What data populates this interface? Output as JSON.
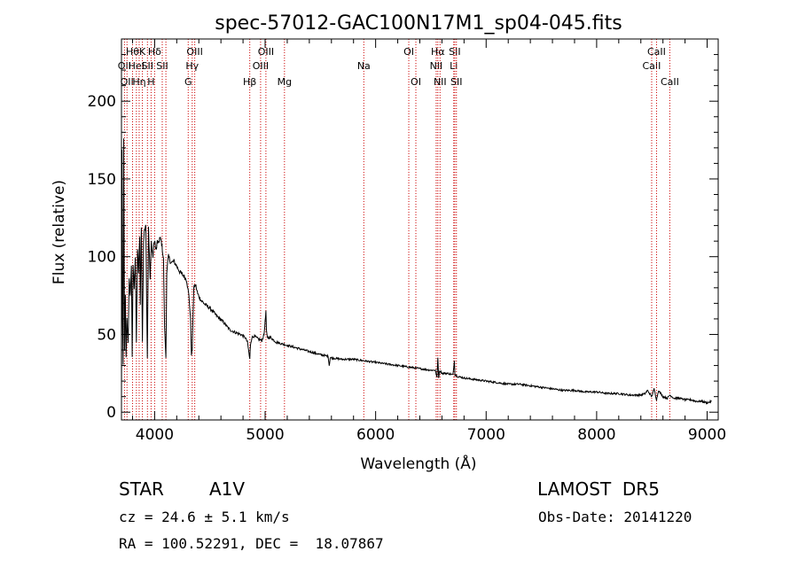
{
  "chart_data": {
    "type": "line",
    "title": "spec-57012-GAC100N17M1_sp04-045.fits",
    "xlabel": "Wavelength (Å)",
    "ylabel": "Flux (relative)",
    "xlim": [
      3700,
      9100
    ],
    "ylim": [
      -5,
      240
    ],
    "x_ticks": [
      4000,
      5000,
      6000,
      7000,
      8000,
      9000
    ],
    "y_ticks": [
      0,
      50,
      100,
      150,
      200
    ],
    "grid": false,
    "series": [
      {
        "x": [
          3700,
          3705,
          3710,
          3715,
          3720,
          3728,
          3735,
          3742,
          3750,
          3760,
          3770,
          3780,
          3790,
          3797,
          3805,
          3815,
          3825,
          3835,
          3845,
          3855,
          3865,
          3870,
          3880,
          3889,
          3900,
          3910,
          3920,
          3934,
          3945,
          3955,
          3960,
          3970,
          3975,
          3985,
          3995,
          4005,
          4015,
          4025,
          4035,
          4045,
          4060,
          4070,
          4080,
          4090,
          4102,
          4110,
          4125,
          4150,
          4175,
          4200,
          4230,
          4260,
          4290,
          4310,
          4325,
          4333,
          4340,
          4347,
          4355,
          4370,
          4390,
          4420,
          4460,
          4500,
          4560,
          4620,
          4680,
          4740,
          4780,
          4820,
          4840,
          4850,
          4861,
          4868,
          4880,
          4900,
          4940,
          4970,
          4990,
          5000,
          5007,
          5012,
          5020,
          5050,
          5100,
          5150,
          5200,
          5300,
          5400,
          5500,
          5570,
          5580,
          5590,
          5700,
          5800,
          5900,
          6000,
          6100,
          6200,
          6300,
          6400,
          6500,
          6540,
          6555,
          6563,
          6570,
          6580,
          6600,
          6650,
          6700,
          6712,
          6718,
          6725,
          6740,
          6800,
          6900,
          7000,
          7100,
          7200,
          7300,
          7400,
          7500,
          7600,
          7700,
          7800,
          7900,
          8000,
          8100,
          8200,
          8300,
          8400,
          8440,
          8460,
          8480,
          8498,
          8520,
          8542,
          8560,
          8600,
          8640,
          8662,
          8680,
          8700,
          8750,
          8800,
          8850,
          8900,
          8950,
          9000,
          9040
        ],
        "y": [
          5,
          170,
          60,
          30,
          175,
          40,
          75,
          35,
          60,
          45,
          85,
          75,
          95,
          35,
          95,
          80,
          100,
          45,
          105,
          90,
          112,
          70,
          118,
          45,
          110,
          118,
          122,
          35,
          118,
          95,
          85,
          110,
          105,
          100,
          110,
          108,
          104,
          110,
          108,
          112,
          110,
          105,
          98,
          55,
          35,
          90,
          100,
          96,
          97,
          94,
          90,
          88,
          85,
          75,
          60,
          37,
          40,
          60,
          80,
          82,
          76,
          72,
          69,
          67,
          62,
          58,
          53,
          51,
          50,
          48,
          45,
          40,
          34,
          44,
          48,
          49,
          47,
          46,
          50,
          58,
          65,
          52,
          48,
          48,
          45,
          44,
          43,
          41,
          39,
          37,
          36,
          30,
          35,
          34,
          34,
          33,
          32,
          31,
          30,
          29,
          28,
          27,
          27,
          22,
          35,
          22,
          27,
          25,
          25,
          24,
          33,
          24,
          24,
          23,
          22,
          21,
          20,
          19,
          18,
          18,
          17,
          16,
          15,
          14,
          14,
          13,
          13,
          12,
          12,
          11,
          11,
          12,
          14,
          12,
          10,
          15,
          8,
          14,
          10,
          9,
          11,
          10,
          9,
          9,
          8,
          8,
          7,
          7,
          6,
          7
        ]
      }
    ],
    "lines": [
      {
        "x": 3727,
        "label": "OII",
        "row": 2
      },
      {
        "x": 3750,
        "label": "OII",
        "row": 3
      },
      {
        "x": 3800,
        "label": "Hθ",
        "row": 1
      },
      {
        "x": 3835,
        "label": "HeI",
        "row": 2
      },
      {
        "x": 3860,
        "label": "Hη",
        "row": 3
      },
      {
        "x": 3889,
        "label": "K",
        "row": 1
      },
      {
        "x": 3935,
        "label": "SII",
        "row": 2
      },
      {
        "x": 3968,
        "label": "H",
        "row": 3
      },
      {
        "x": 4000,
        "label": "Hδ",
        "row": 1
      },
      {
        "x": 4069,
        "label": "SII",
        "row": 2
      },
      {
        "x": 4102,
        "label": "",
        "row": 0
      },
      {
        "x": 4304,
        "label": "G",
        "row": 3
      },
      {
        "x": 4340,
        "label": "Hγ",
        "row": 2
      },
      {
        "x": 4363,
        "label": "OIII",
        "row": 1
      },
      {
        "x": 4861,
        "label": "Hβ",
        "row": 3
      },
      {
        "x": 4959,
        "label": "OIII",
        "row": 2
      },
      {
        "x": 5007,
        "label": "OIII",
        "row": 1
      },
      {
        "x": 5175,
        "label": "Mg",
        "row": 3
      },
      {
        "x": 5893,
        "label": "Na",
        "row": 2
      },
      {
        "x": 6300,
        "label": "OI",
        "row": 1
      },
      {
        "x": 6364,
        "label": "OI",
        "row": 3
      },
      {
        "x": 6548,
        "label": "NII",
        "row": 2
      },
      {
        "x": 6563,
        "label": "Hα",
        "row": 1
      },
      {
        "x": 6583,
        "label": "NII",
        "row": 3
      },
      {
        "x": 6707,
        "label": "Li",
        "row": 2
      },
      {
        "x": 6716,
        "label": "SII",
        "row": 1
      },
      {
        "x": 6731,
        "label": "SII",
        "row": 3
      },
      {
        "x": 8498,
        "label": "CaII",
        "row": 2
      },
      {
        "x": 8542,
        "label": "CaII",
        "row": 1
      },
      {
        "x": 8662,
        "label": "CaII",
        "row": 3
      }
    ],
    "line_color": "#cc0000"
  },
  "footer": {
    "class_label": "STAR",
    "subclass": "A1V",
    "survey": "LAMOST  DR5",
    "cz": "cz = 24.6 ± 5.1 km/s",
    "obs_date": "Obs-Date: 20141220",
    "radec": "RA = 100.52291, DEC =  18.07867"
  }
}
